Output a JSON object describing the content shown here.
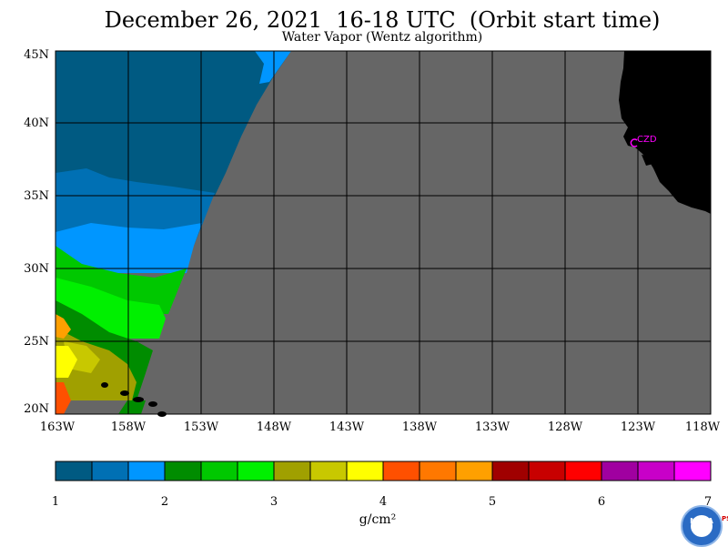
{
  "title": "December 26, 2021  16-18 UTC  (Orbit start time)",
  "subtitle": "Water Vapor (Wentz algorithm)",
  "map": {
    "lat_labels": [
      "45N",
      "40N",
      "35N",
      "30N",
      "25N",
      "20N"
    ],
    "lon_labels": [
      "163W",
      "158W",
      "153W",
      "148W",
      "143W",
      "138W",
      "133W",
      "128W",
      "123W",
      "118W"
    ],
    "lat_range": [
      20,
      45
    ],
    "lon_range": [
      -163,
      -118
    ],
    "station_label": "CZD",
    "colors": {
      "no_data": "#666666",
      "land": "#000000",
      "grid": "#000000",
      "station": "#ff00ff"
    }
  },
  "colorbar": {
    "ticks": [
      "1",
      "2",
      "3",
      "4",
      "5",
      "6",
      "7"
    ],
    "units": "g/cm²",
    "colors": [
      "#005a82",
      "#0070b4",
      "#0096ff",
      "#008c00",
      "#00c800",
      "#00f000",
      "#a0a000",
      "#c8c800",
      "#ffff00",
      "#ff5000",
      "#ff7800",
      "#ffa000",
      "#a00000",
      "#c80000",
      "#ff0000",
      "#a000a0",
      "#c800c8",
      "#ff00ff"
    ]
  },
  "logo": {
    "noaa_text": "NOAA",
    "side_text": "PSL"
  }
}
